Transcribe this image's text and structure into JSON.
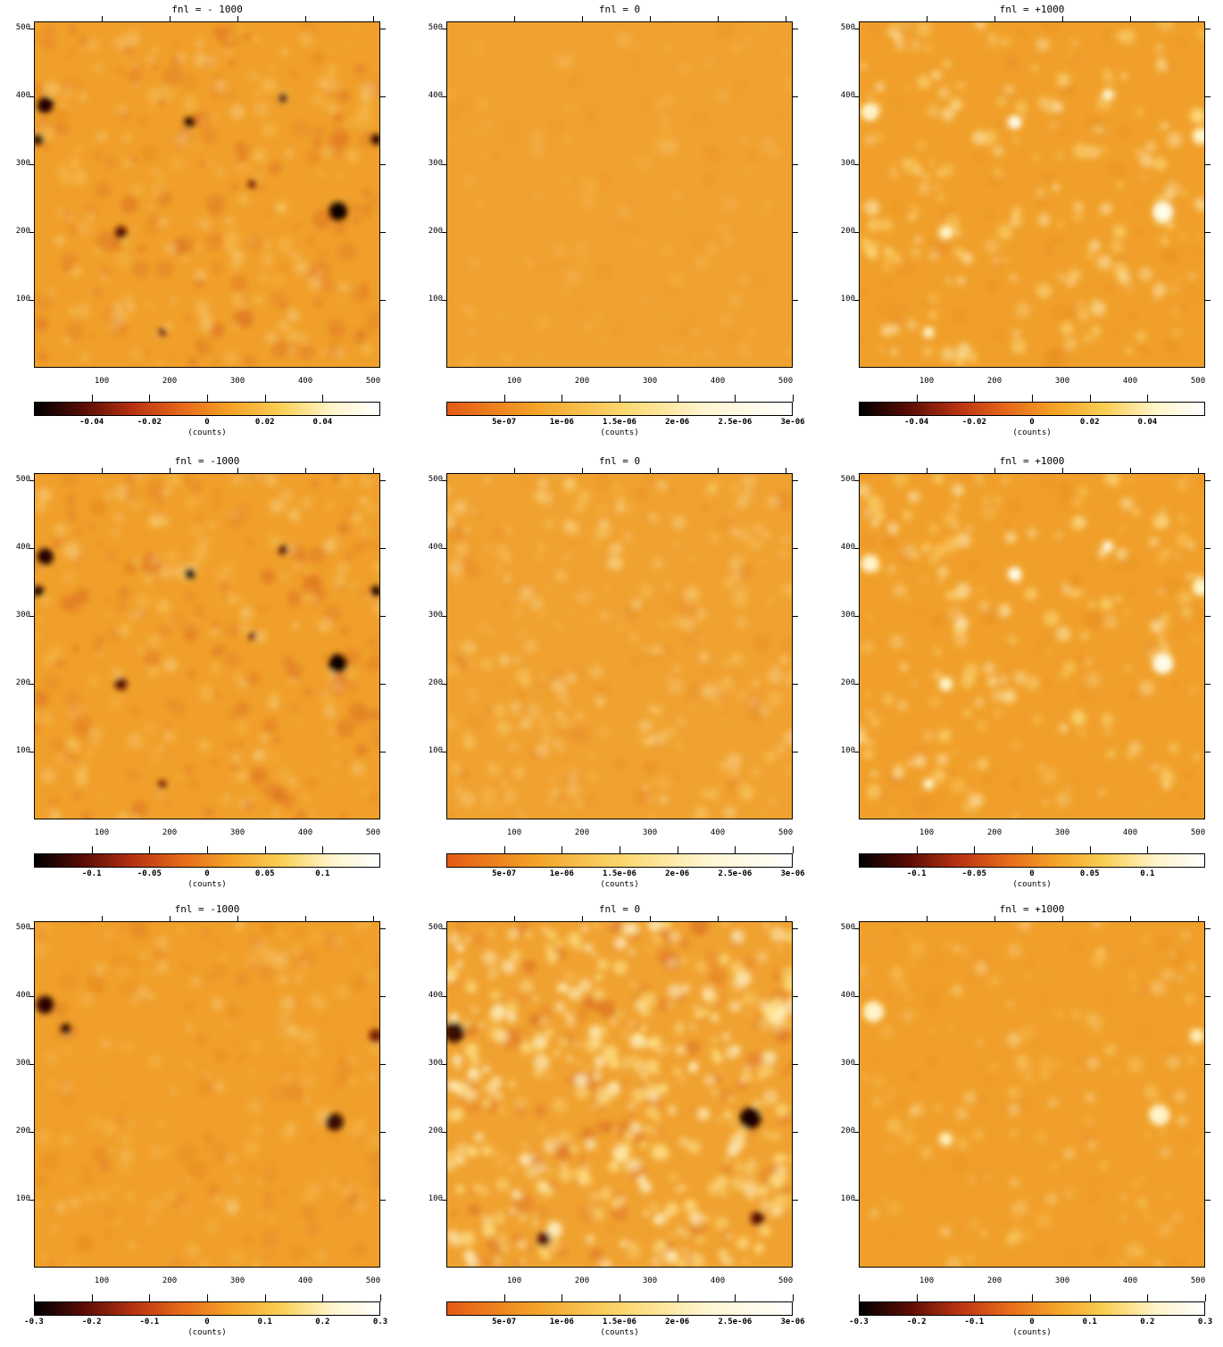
{
  "axis_ticks": {
    "y": [
      "500",
      "400",
      "300",
      "200",
      "100"
    ],
    "x": [
      "100",
      "200",
      "300",
      "400",
      "500"
    ]
  },
  "cbar_unit": "(counts)",
  "colormap": {
    "diverging": [
      "#000000",
      "#5a0d05",
      "#b83212",
      "#e66a1a",
      "#f4a327",
      "#f9cf55",
      "#fff4c8",
      "#ffffff"
    ],
    "positive": [
      "#e55a14",
      "#f3a127",
      "#fbd66a",
      "#fff5d0",
      "#ffffff"
    ]
  },
  "panels": [
    {
      "title": "fnl = - 1000",
      "variant": "neg",
      "cbar": "div",
      "ticks": [
        "-0.04",
        "-0.02",
        "0",
        "0.02",
        "0.04"
      ]
    },
    {
      "title": "fnl = 0",
      "variant": "zero-smooth",
      "cbar": "pos",
      "ticks": [
        "5e-07",
        "1e-06",
        "1.5e-06",
        "2e-06",
        "2.5e-06",
        "3e-06"
      ]
    },
    {
      "title": "fnl = +1000",
      "variant": "pos",
      "cbar": "div",
      "ticks": [
        "-0.04",
        "-0.02",
        "0",
        "0.02",
        "0.04"
      ]
    },
    {
      "title": "fnl = -1000",
      "variant": "neg",
      "cbar": "div",
      "ticks": [
        "-0.1",
        "-0.05",
        "0",
        "0.05",
        "0.1"
      ]
    },
    {
      "title": "fnl = 0",
      "variant": "zero-mid",
      "cbar": "pos",
      "ticks": [
        "5e-07",
        "1e-06",
        "1.5e-06",
        "2e-06",
        "2.5e-06",
        "3e-06"
      ]
    },
    {
      "title": "fnl = +1000",
      "variant": "pos",
      "cbar": "div",
      "ticks": [
        "-0.1",
        "-0.05",
        "0",
        "0.05",
        "0.1"
      ]
    },
    {
      "title": "fnl = -1000",
      "variant": "neg-faint",
      "cbar": "div",
      "ticks": [
        "-0.3",
        "-0.2",
        "-0.1",
        "0",
        "0.1",
        "0.2",
        "0.3"
      ]
    },
    {
      "title": "fnl = 0",
      "variant": "zero-strong",
      "cbar": "pos",
      "ticks": [
        "5e-07",
        "1e-06",
        "1.5e-06",
        "2e-06",
        "2.5e-06",
        "3e-06"
      ]
    },
    {
      "title": "fnl = +1000",
      "variant": "pos-faint",
      "cbar": "div",
      "ticks": [
        "-0.3",
        "-0.2",
        "-0.1",
        "0",
        "0.1",
        "0.2",
        "0.3"
      ]
    }
  ]
}
